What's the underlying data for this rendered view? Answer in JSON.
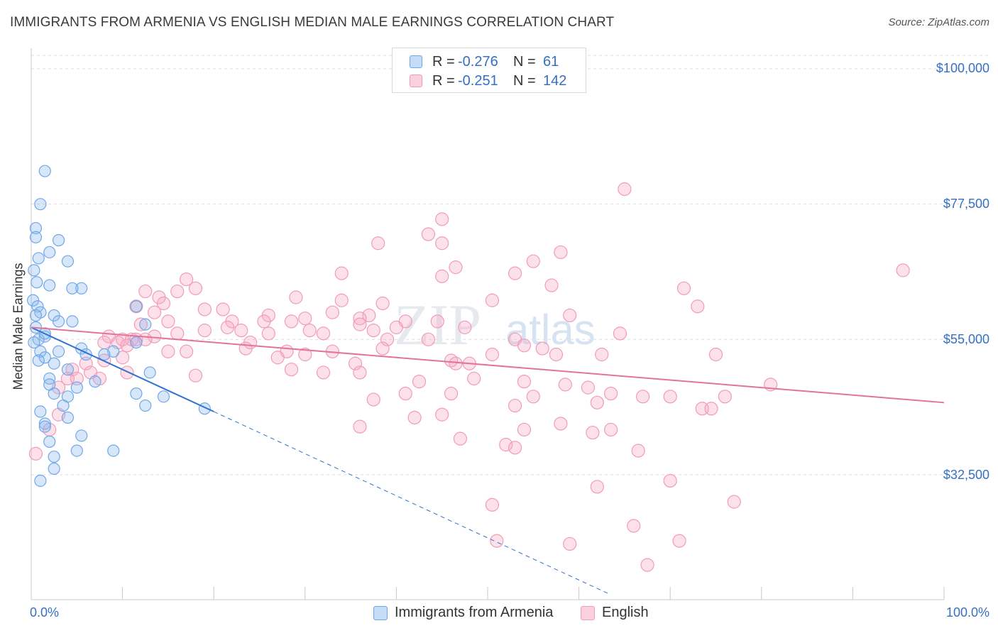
{
  "title": "IMMIGRANTS FROM ARMENIA VS ENGLISH MEDIAN MALE EARNINGS CORRELATION CHART",
  "source": {
    "label": "Source: ZipAtlas.com"
  },
  "watermark": {
    "zip": "ZIP",
    "atlas": "atlas"
  },
  "legend": {
    "series1": {
      "r_label": "R =",
      "r_value": "-0.276",
      "n_label": "N =",
      "n_value": "61"
    },
    "series2": {
      "r_label": "R =",
      "r_value": "-0.251",
      "n_label": "N =",
      "n_value": "142"
    }
  },
  "colors": {
    "blue": "#6fa8e8",
    "blue_line": "#2f72d0",
    "pink": "#f29bb8",
    "pink_line": "#e4739b",
    "axis_text": "#3470c4"
  },
  "chart_data": {
    "type": "scatter",
    "title": "IMMIGRANTS FROM ARMENIA VS ENGLISH MEDIAN MALE EARNINGS CORRELATION CHART",
    "xlabel": "",
    "ylabel": "Median Male Earnings",
    "xlim": [
      0,
      100
    ],
    "ylim": [
      12000,
      104000
    ],
    "x_tick_labels": [
      "0.0%",
      "100.0%"
    ],
    "y_ticks": [
      32500,
      55000,
      77500,
      100000
    ],
    "y_tick_labels": [
      "$32,500",
      "$55,000",
      "$77,500",
      "$100,000"
    ],
    "grid": true,
    "legend_position": "top-center",
    "series": [
      {
        "name": "Immigrants from Armenia",
        "color": "#6fa8e8",
        "trend": {
          "x": [
            0,
            20
          ],
          "y": [
            57000,
            43000
          ],
          "dashed_to_x": 63.5
        },
        "points": [
          [
            1.5,
            83000
          ],
          [
            1,
            77500
          ],
          [
            0.5,
            73500
          ],
          [
            0.5,
            72000
          ],
          [
            3,
            71500
          ],
          [
            2,
            69500
          ],
          [
            0.8,
            68500
          ],
          [
            4,
            68000
          ],
          [
            0.3,
            66500
          ],
          [
            0.6,
            64500
          ],
          [
            2,
            64000
          ],
          [
            5.5,
            63500
          ],
          [
            4.5,
            63500
          ],
          [
            0.2,
            61500
          ],
          [
            0.7,
            60500
          ],
          [
            11.5,
            60500
          ],
          [
            1,
            59500
          ],
          [
            2.5,
            59000
          ],
          [
            0.5,
            59000
          ],
          [
            3,
            58000
          ],
          [
            4.5,
            58000
          ],
          [
            12.5,
            57500
          ],
          [
            1.5,
            55500
          ],
          [
            0.8,
            55000
          ],
          [
            0.3,
            54500
          ],
          [
            11.5,
            54500
          ],
          [
            5.5,
            53500
          ],
          [
            1,
            53000
          ],
          [
            3,
            53000
          ],
          [
            9,
            53000
          ],
          [
            6,
            52500
          ],
          [
            1.5,
            52000
          ],
          [
            0.8,
            51500
          ],
          [
            2.5,
            51000
          ],
          [
            4,
            50000
          ],
          [
            13,
            49500
          ],
          [
            2,
            48500
          ],
          [
            7,
            48000
          ],
          [
            5,
            47000
          ],
          [
            2.5,
            46000
          ],
          [
            4,
            45500
          ],
          [
            11.5,
            46000
          ],
          [
            14.5,
            45500
          ],
          [
            3.5,
            44000
          ],
          [
            12.5,
            44000
          ],
          [
            1,
            43000
          ],
          [
            19,
            43500
          ],
          [
            4,
            42000
          ],
          [
            1.5,
            41000
          ],
          [
            1.5,
            40500
          ],
          [
            5.5,
            39000
          ],
          [
            2,
            38000
          ],
          [
            5,
            36500
          ],
          [
            9,
            36500
          ],
          [
            2.5,
            35500
          ],
          [
            2.5,
            33500
          ],
          [
            1,
            31500
          ],
          [
            0.5,
            57000
          ],
          [
            1.5,
            56000
          ],
          [
            2,
            47500
          ],
          [
            8,
            52500
          ]
        ]
      },
      {
        "name": "English",
        "color": "#f29bb8",
        "trend": {
          "x": [
            0,
            100
          ],
          "y": [
            57000,
            44500
          ]
        },
        "points": [
          [
            65,
            80000
          ],
          [
            45,
            75000
          ],
          [
            43.5,
            72500
          ],
          [
            38,
            71000
          ],
          [
            45,
            71000
          ],
          [
            58,
            69500
          ],
          [
            55,
            68000
          ],
          [
            46.5,
            67000
          ],
          [
            95.5,
            66500
          ],
          [
            34,
            66000
          ],
          [
            53,
            66000
          ],
          [
            45,
            65500
          ],
          [
            17,
            65000
          ],
          [
            57,
            64000
          ],
          [
            71.5,
            63500
          ],
          [
            18,
            63500
          ],
          [
            16,
            63000
          ],
          [
            12.5,
            63000
          ],
          [
            14,
            62000
          ],
          [
            29,
            62000
          ],
          [
            34,
            61500
          ],
          [
            50.5,
            61500
          ],
          [
            38.5,
            61000
          ],
          [
            14.5,
            61000
          ],
          [
            73,
            60500
          ],
          [
            11.5,
            60500
          ],
          [
            19,
            60000
          ],
          [
            21,
            60000
          ],
          [
            13.5,
            59500
          ],
          [
            33,
            59500
          ],
          [
            37,
            59000
          ],
          [
            59,
            59000
          ],
          [
            26,
            59000
          ],
          [
            36,
            58500
          ],
          [
            30,
            58500
          ],
          [
            15,
            58000
          ],
          [
            22,
            58000
          ],
          [
            25.5,
            58000
          ],
          [
            28.5,
            58000
          ],
          [
            41,
            58000
          ],
          [
            44.5,
            58000
          ],
          [
            12,
            57500
          ],
          [
            36,
            57500
          ],
          [
            21.5,
            57000
          ],
          [
            40,
            57000
          ],
          [
            47.5,
            57000
          ],
          [
            30.5,
            56500
          ],
          [
            37.5,
            56500
          ],
          [
            19,
            56500
          ],
          [
            23,
            56500
          ],
          [
            32,
            56000
          ],
          [
            26,
            56000
          ],
          [
            16,
            56000
          ],
          [
            64.5,
            56000
          ],
          [
            13.5,
            55500
          ],
          [
            8.5,
            55500
          ],
          [
            11,
            55000
          ],
          [
            10,
            55000
          ],
          [
            11.5,
            55000
          ],
          [
            12.5,
            55000
          ],
          [
            39,
            55000
          ],
          [
            43.5,
            55000
          ],
          [
            53,
            55000
          ],
          [
            24,
            54500
          ],
          [
            8,
            54500
          ],
          [
            9.5,
            54500
          ],
          [
            10.5,
            54000
          ],
          [
            54,
            54000
          ],
          [
            38.5,
            53500
          ],
          [
            56,
            53500
          ],
          [
            28,
            53000
          ],
          [
            17,
            53000
          ],
          [
            15,
            53000
          ],
          [
            23.5,
            53500
          ],
          [
            33,
            53000
          ],
          [
            30,
            52500
          ],
          [
            50.5,
            52500
          ],
          [
            57.5,
            52500
          ],
          [
            62.5,
            52500
          ],
          [
            75,
            52500
          ],
          [
            10,
            52000
          ],
          [
            27,
            52000
          ],
          [
            8,
            51500
          ],
          [
            46,
            51500
          ],
          [
            48,
            51000
          ],
          [
            6,
            51000
          ],
          [
            46.5,
            51000
          ],
          [
            35.5,
            51000
          ],
          [
            4.5,
            50000
          ],
          [
            28.5,
            50000
          ],
          [
            36,
            49500
          ],
          [
            32,
            49500
          ],
          [
            10.5,
            49500
          ],
          [
            6.5,
            49500
          ],
          [
            18,
            49000
          ],
          [
            4,
            48500
          ],
          [
            5,
            48500
          ],
          [
            48.5,
            48500
          ],
          [
            42.5,
            48000
          ],
          [
            54,
            48000
          ],
          [
            58.5,
            47500
          ],
          [
            81,
            47500
          ],
          [
            61,
            47000
          ],
          [
            3,
            47000
          ],
          [
            41,
            46000
          ],
          [
            46,
            46000
          ],
          [
            63.5,
            46000
          ],
          [
            55,
            45500
          ],
          [
            67,
            45500
          ],
          [
            76,
            45500
          ],
          [
            70,
            45500
          ],
          [
            37.5,
            45000
          ],
          [
            62,
            44500
          ],
          [
            53,
            44000
          ],
          [
            73.5,
            43500
          ],
          [
            74.5,
            43500
          ],
          [
            45,
            42500
          ],
          [
            42,
            42000
          ],
          [
            58,
            41000
          ],
          [
            36,
            40500
          ],
          [
            54,
            40000
          ],
          [
            61.5,
            39500
          ],
          [
            63.5,
            40000
          ],
          [
            2,
            40000
          ],
          [
            47,
            38500
          ],
          [
            52,
            37500
          ],
          [
            53,
            37000
          ],
          [
            66.5,
            36500
          ],
          [
            0.5,
            36000
          ],
          [
            70,
            31500
          ],
          [
            62,
            30500
          ],
          [
            50.5,
            27500
          ],
          [
            77,
            28000
          ],
          [
            66,
            24000
          ],
          [
            51,
            21500
          ],
          [
            71,
            21500
          ],
          [
            59,
            21000
          ],
          [
            67.5,
            17500
          ],
          [
            3,
            42500
          ],
          [
            7.5,
            48500
          ]
        ]
      }
    ]
  }
}
